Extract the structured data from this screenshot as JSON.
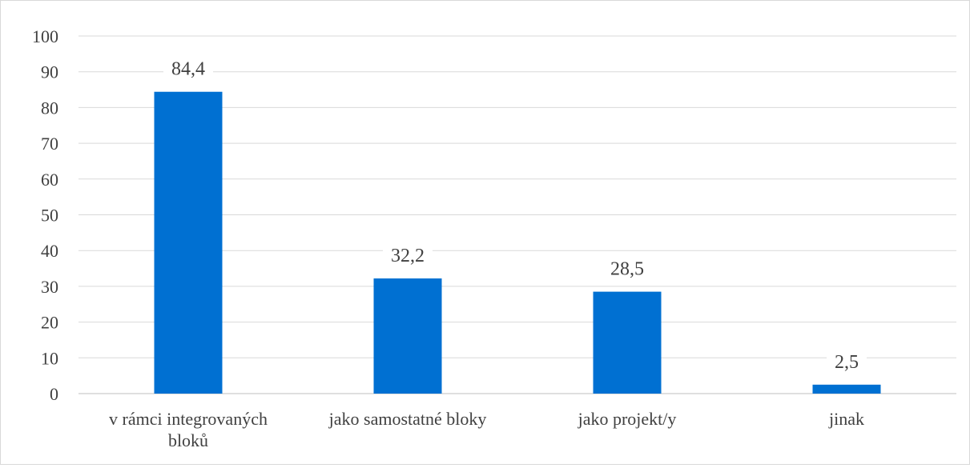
{
  "chart_data": {
    "type": "bar",
    "categories": [
      [
        "v rámci integrovaných",
        "bloků"
      ],
      [
        "jako samostatné bloky"
      ],
      [
        "jako projekt/y"
      ],
      [
        "jinak"
      ]
    ],
    "values": [
      84.4,
      32.2,
      28.5,
      2.5
    ],
    "data_labels": [
      "84,4",
      "32,2",
      "28,5",
      "2,5"
    ],
    "y_ticks": [
      0,
      10,
      20,
      30,
      40,
      50,
      60,
      70,
      80,
      90,
      100
    ],
    "ylim": [
      0,
      100
    ],
    "grid": true,
    "legend": "none",
    "bar_color": "#0070d2"
  }
}
